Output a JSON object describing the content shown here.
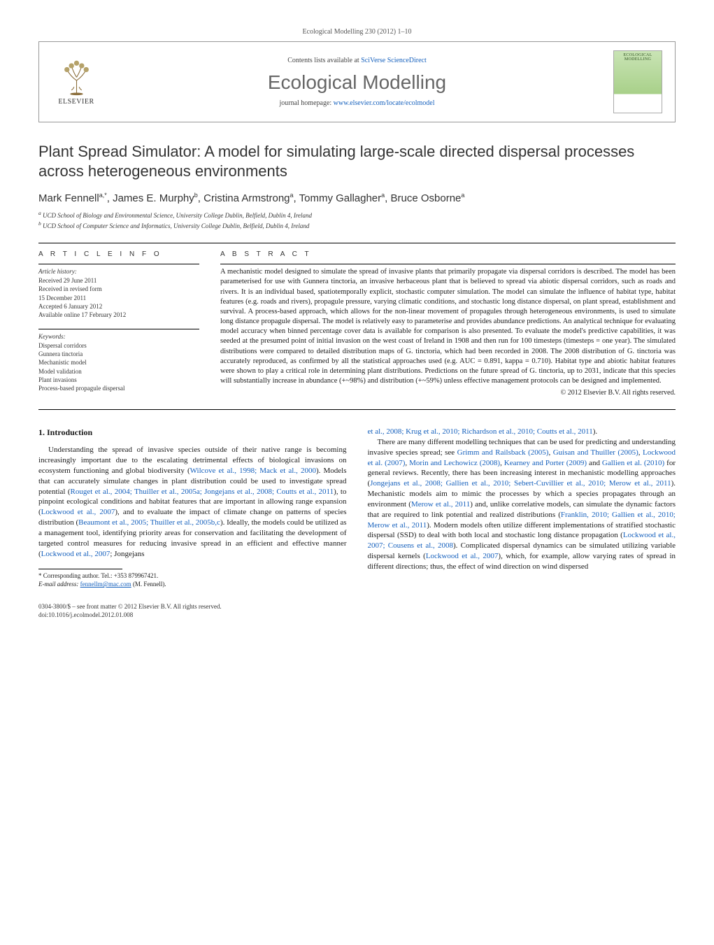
{
  "journal_ref": "Ecological Modelling 230 (2012) 1–10",
  "header": {
    "elsevier": "ELSEVIER",
    "contents_prefix": "Contents lists available at ",
    "contents_link": "SciVerse ScienceDirect",
    "journal_title": "Ecological Modelling",
    "homepage_prefix": "journal homepage: ",
    "homepage_link": "www.elsevier.com/locate/ecolmodel",
    "cover_label": "ECOLOGICAL MODELLING"
  },
  "title": "Plant Spread Simulator: A model for simulating large-scale directed dispersal processes across heterogeneous environments",
  "authors_html": "Mark Fennell",
  "authors": [
    {
      "name": "Mark Fennell",
      "sup": "a,*"
    },
    {
      "name": "James E. Murphy",
      "sup": "b"
    },
    {
      "name": "Cristina Armstrong",
      "sup": "a"
    },
    {
      "name": "Tommy Gallagher",
      "sup": "a"
    },
    {
      "name": "Bruce Osborne",
      "sup": "a"
    }
  ],
  "affiliations": [
    {
      "sup": "a",
      "text": "UCD School of Biology and Environmental Science, University College Dublin, Belfield, Dublin 4, Ireland"
    },
    {
      "sup": "b",
      "text": "UCD School of Computer Science and Informatics, University College Dublin, Belfield, Dublin 4, Ireland"
    }
  ],
  "info_label": "A R T I C L E   I N F O",
  "abstract_label": "A B S T R A C T",
  "history": {
    "title": "Article history:",
    "lines": [
      "Received 29 June 2011",
      "Received in revised form",
      "15 December 2011",
      "Accepted 6 January 2012",
      "Available online 17 February 2012"
    ]
  },
  "keywords": {
    "title": "Keywords:",
    "items": [
      "Dispersal corridors",
      "Gunnera tinctoria",
      "Mechanistic model",
      "Model validation",
      "Plant invasions",
      "Process-based propagule dispersal"
    ]
  },
  "abstract": "A mechanistic model designed to simulate the spread of invasive plants that primarily propagate via dispersal corridors is described. The model has been parameterised for use with Gunnera tinctoria, an invasive herbaceous plant that is believed to spread via abiotic dispersal corridors, such as roads and rivers. It is an individual based, spatiotemporally explicit, stochastic computer simulation. The model can simulate the influence of habitat type, habitat features (e.g. roads and rivers), propagule pressure, varying climatic conditions, and stochastic long distance dispersal, on plant spread, establishment and survival. A process-based approach, which allows for the non-linear movement of propagules through heterogeneous environments, is used to simulate long distance propagule dispersal. The model is relatively easy to parameterise and provides abundance predictions. An analytical technique for evaluating model accuracy when binned percentage cover data is available for comparison is also presented. To evaluate the model's predictive capabilities, it was seeded at the presumed point of initial invasion on the west coast of Ireland in 1908 and then run for 100 timesteps (timesteps = one year). The simulated distributions were compared to detailed distribution maps of G. tinctoria, which had been recorded in 2008. The 2008 distribution of G. tinctoria was accurately reproduced, as confirmed by all the statistical approaches used (e.g. AUC = 0.891, kappa = 0.710). Habitat type and abiotic habitat features were shown to play a critical role in determining plant distributions. Predictions on the future spread of G. tinctoria, up to 2031, indicate that this species will substantially increase in abundance (+~98%) and distribution (+~59%) unless effective management protocols can be designed and implemented.",
  "copyright": "© 2012 Elsevier B.V. All rights reserved.",
  "intro": {
    "heading": "1.  Introduction",
    "col1_p1": "Understanding the spread of invasive species outside of their native range is becoming increasingly important due to the escalating detrimental effects of biological invasions on ecosystem functioning and global biodiversity (Wilcove et al., 1998; Mack et al., 2000). Models that can accurately simulate changes in plant distribution could be used to investigate spread potential (Rouget et al., 2004; Thuiller et al., 2005a; Jongejans et al., 2008; Coutts et al., 2011), to pinpoint ecological conditions and habitat features that are important in allowing range expansion (Lockwood et al., 2007), and to evaluate the impact of climate change on patterns of species distribution (Beaumont et al., 2005; Thuiller et al., 2005b,c). Ideally, the models could be utilized as a management tool, identifying priority areas for conservation and facilitating the development of targeted control measures for reducing invasive spread in an efficient and effective manner (Lockwood et al., 2007; Jongejans",
    "col2_p0": "et al., 2008; Krug et al., 2010; Richardson et al., 2010; Coutts et al., 2011).",
    "col2_p1": "There are many different modelling techniques that can be used for predicting and understanding invasive species spread; see Grimm and Railsback (2005), Guisan and Thuiller (2005), Lockwood et al. (2007), Morin and Lechowicz (2008), Kearney and Porter (2009) and Gallien et al. (2010) for general reviews. Recently, there has been increasing interest in mechanistic modelling approaches (Jongejans et al., 2008; Gallien et al., 2010; Sebert-Cuvillier et al., 2010; Merow et al., 2011). Mechanistic models aim to mimic the processes by which a species propagates through an environment (Merow et al., 2011) and, unlike correlative models, can simulate the dynamic factors that are required to link potential and realized distributions (Franklin, 2010; Gallien et al., 2010; Merow et al., 2011). Modern models often utilize different implementations of stratified stochastic dispersal (SSD) to deal with both local and stochastic long distance propagation (Lockwood et al., 2007; Cousens et al., 2008). Complicated dispersal dynamics can be simulated utilizing variable dispersal kernels (Lockwood et al., 2007), which, for example, allow varying rates of spread in different directions; thus, the effect of wind direction on wind dispersed"
  },
  "footnote": {
    "corr": "* Corresponding author. Tel.: +353 879967421.",
    "email_label": "E-mail address: ",
    "email": "fennellm@mac.com",
    "email_suffix": " (M. Fennell)."
  },
  "footer": {
    "line1": "0304-3800/$ – see front matter © 2012 Elsevier B.V. All rights reserved.",
    "doi": "doi:10.1016/j.ecolmodel.2012.01.008"
  },
  "colors": {
    "link": "#1560bd",
    "title_gray": "#666666",
    "text": "#1a1a1a"
  }
}
